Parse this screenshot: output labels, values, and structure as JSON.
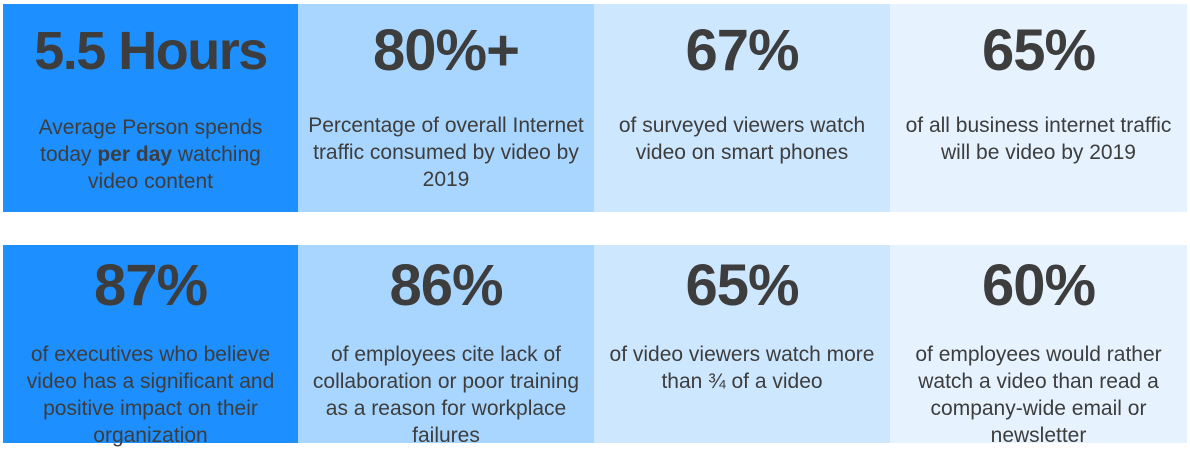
{
  "row1": [
    {
      "stat": "5.5 Hours",
      "desc_before": "Average Person spends today ",
      "desc_bold": "per day",
      "desc_after": " watching video content"
    },
    {
      "stat": "80%+",
      "desc": "Percentage of overall Internet traffic consumed by video by 2019"
    },
    {
      "stat": "67%",
      "desc": "of surveyed viewers watch video on smart phones"
    },
    {
      "stat": "65%",
      "desc": "of all business internet traffic will be video by 2019"
    }
  ],
  "row2": [
    {
      "stat": "87%",
      "desc": "of executives who believe video has a significant and positive impact on their organization"
    },
    {
      "stat": "86%",
      "desc": "of employees cite lack of collaboration or poor training as a reason for workplace failures"
    },
    {
      "stat": "65%",
      "desc": "of video viewers watch more than ¾ of a video"
    },
    {
      "stat": "60%",
      "desc": "of employees would rather watch a video than read a company-wide email or newsletter"
    }
  ],
  "colors": {
    "tile_1": "#1e8fff",
    "tile_2": "#a9d6ff",
    "tile_3": "#cde7ff",
    "tile_4": "#e6f3ff",
    "text": "#3d3d3d"
  }
}
